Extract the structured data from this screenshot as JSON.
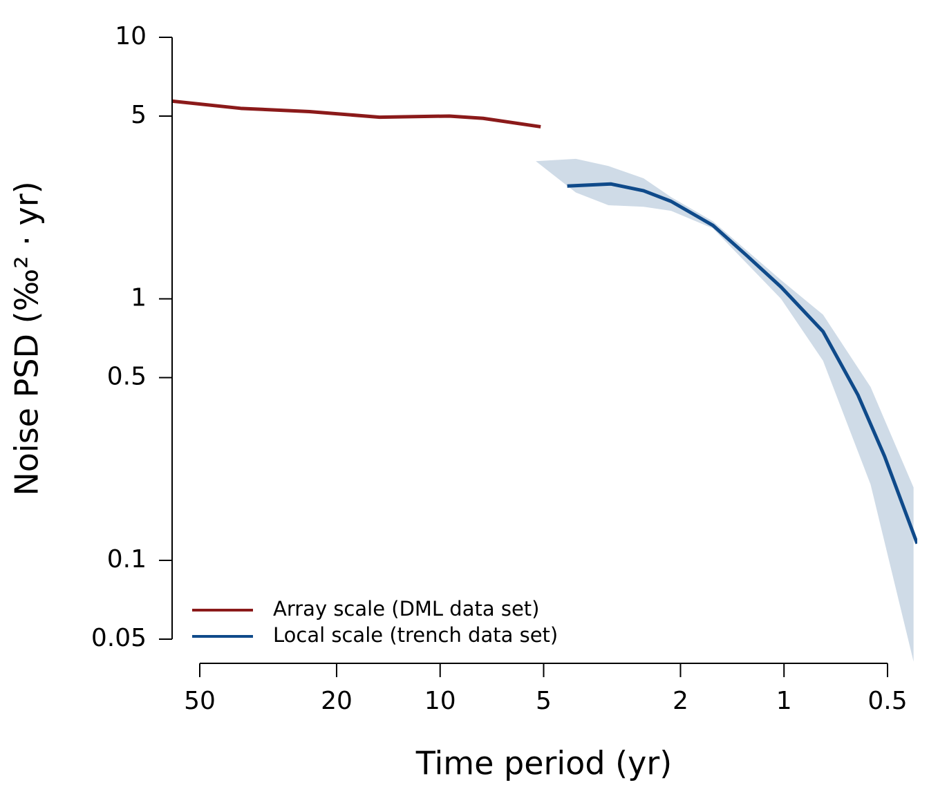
{
  "chart_data": {
    "type": "line",
    "xlabel": "Time period (yr)",
    "ylabel": "Noise PSD (‰² · yr)",
    "xlog": true,
    "ylog": true,
    "xlim": [
      50,
      0.5
    ],
    "ylim": [
      0.05,
      10
    ],
    "xticks": [
      50,
      20,
      10,
      5,
      2,
      1,
      0.5
    ],
    "yticks": [
      0.05,
      0.1,
      0.5,
      1,
      5,
      10
    ],
    "legend": "bottom-left",
    "series": [
      {
        "name": "Array scale (DML data set)",
        "color": "#8b1a1a",
        "x": [
          60,
          38,
          24,
          15,
          9.4,
          7.5,
          5.1
        ],
        "values": [
          5.7,
          5.35,
          5.2,
          4.95,
          5.0,
          4.9,
          4.55
        ]
      },
      {
        "name": "Local scale (trench data set)",
        "color": "#0f4a8a",
        "x": [
          4.27,
          3.19,
          2.56,
          2.13,
          1.61,
          1.28,
          1.02,
          0.77,
          0.61,
          0.51,
          0.41
        ],
        "values": [
          2.7,
          2.75,
          2.59,
          2.36,
          1.91,
          1.46,
          1.11,
          0.75,
          0.43,
          0.25,
          0.116
        ]
      }
    ],
    "band": {
      "color": "#cfdbe7",
      "x": [
        5.27,
        4.03,
        3.24,
        2.56,
        2.13,
        1.61,
        1.02,
        0.77,
        0.56,
        0.42
      ],
      "upper": [
        3.36,
        3.43,
        3.22,
        2.89,
        2.45,
        1.98,
        1.18,
        0.87,
        0.46,
        0.19
      ],
      "lower": [
        3.36,
        2.55,
        2.28,
        2.25,
        2.17,
        1.86,
        1.0,
        0.58,
        0.195,
        0.041
      ]
    }
  }
}
